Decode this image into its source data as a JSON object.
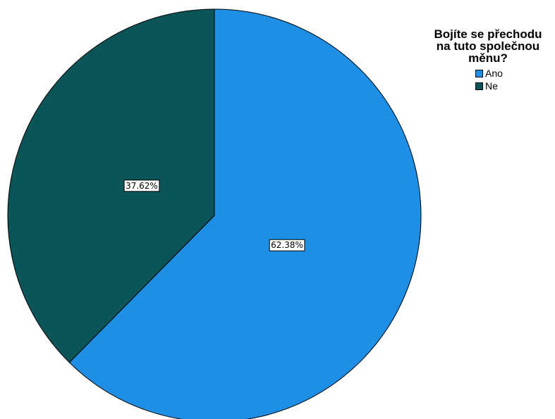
{
  "chart_data": {
    "type": "pie",
    "legend_title": "Bojíte se přechodu na tuto společnou měnu?",
    "legend_position": "top-right",
    "slices": [
      {
        "label": "Ano",
        "value": 62.38,
        "data_label": "62.38%",
        "color": "#1F8FE5"
      },
      {
        "label": "Ne",
        "value": 37.62,
        "data_label": "37.62%",
        "color": "#0B5559"
      }
    ],
    "start_angle_deg": 0,
    "direction": "clockwise"
  }
}
